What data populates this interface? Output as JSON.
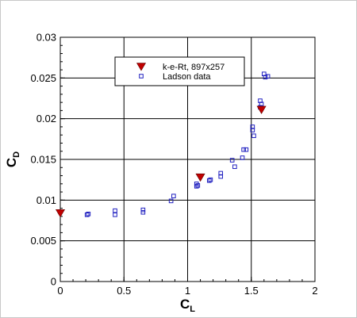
{
  "chart_data": {
    "type": "scatter",
    "xlabel": {
      "main": "C",
      "sub": "L"
    },
    "ylabel": {
      "main": "C",
      "sub": "D"
    },
    "xlim": [
      0,
      2
    ],
    "ylim": [
      0,
      0.03
    ],
    "x_ticks": [
      "0",
      "0.5",
      "1",
      "1.5",
      "2"
    ],
    "x_tick_values": [
      0,
      0.5,
      1,
      1.5,
      2
    ],
    "y_ticks": [
      "0",
      "0.005",
      "0.01",
      "0.015",
      "0.02",
      "0.025",
      "0.03"
    ],
    "y_tick_values": [
      0,
      0.005,
      0.01,
      0.015,
      0.02,
      0.025,
      0.03
    ],
    "grid": true,
    "legend_position": "top-center",
    "series": [
      {
        "name": "k-e-Rt, 897x257",
        "marker": "triangle-down-filled",
        "color": "#c00000",
        "points": [
          {
            "x": 0.0,
            "y": 0.0084
          },
          {
            "x": 1.1,
            "y": 0.0128
          },
          {
            "x": 1.58,
            "y": 0.0211
          }
        ]
      },
      {
        "name": "Ladson data",
        "marker": "square-open",
        "color": "#2020c0",
        "points": [
          {
            "x": 0.21,
            "y": 0.0082
          },
          {
            "x": 0.22,
            "y": 0.0083
          },
          {
            "x": 0.43,
            "y": 0.0082
          },
          {
            "x": 0.43,
            "y": 0.0087
          },
          {
            "x": 0.65,
            "y": 0.0085
          },
          {
            "x": 0.65,
            "y": 0.0088
          },
          {
            "x": 0.87,
            "y": 0.0099
          },
          {
            "x": 0.89,
            "y": 0.0105
          },
          {
            "x": 1.07,
            "y": 0.0117
          },
          {
            "x": 1.07,
            "y": 0.012
          },
          {
            "x": 1.08,
            "y": 0.0118
          },
          {
            "x": 1.17,
            "y": 0.0124
          },
          {
            "x": 1.18,
            "y": 0.0125
          },
          {
            "x": 1.26,
            "y": 0.0129
          },
          {
            "x": 1.26,
            "y": 0.0133
          },
          {
            "x": 1.35,
            "y": 0.0149
          },
          {
            "x": 1.37,
            "y": 0.0141
          },
          {
            "x": 1.43,
            "y": 0.0152
          },
          {
            "x": 1.44,
            "y": 0.0162
          },
          {
            "x": 1.46,
            "y": 0.0162
          },
          {
            "x": 1.51,
            "y": 0.0186
          },
          {
            "x": 1.51,
            "y": 0.019
          },
          {
            "x": 1.52,
            "y": 0.0179
          },
          {
            "x": 1.57,
            "y": 0.0214
          },
          {
            "x": 1.57,
            "y": 0.0222
          },
          {
            "x": 1.58,
            "y": 0.0218
          },
          {
            "x": 1.6,
            "y": 0.0255
          },
          {
            "x": 1.61,
            "y": 0.0251
          },
          {
            "x": 1.63,
            "y": 0.0252
          }
        ]
      }
    ]
  }
}
